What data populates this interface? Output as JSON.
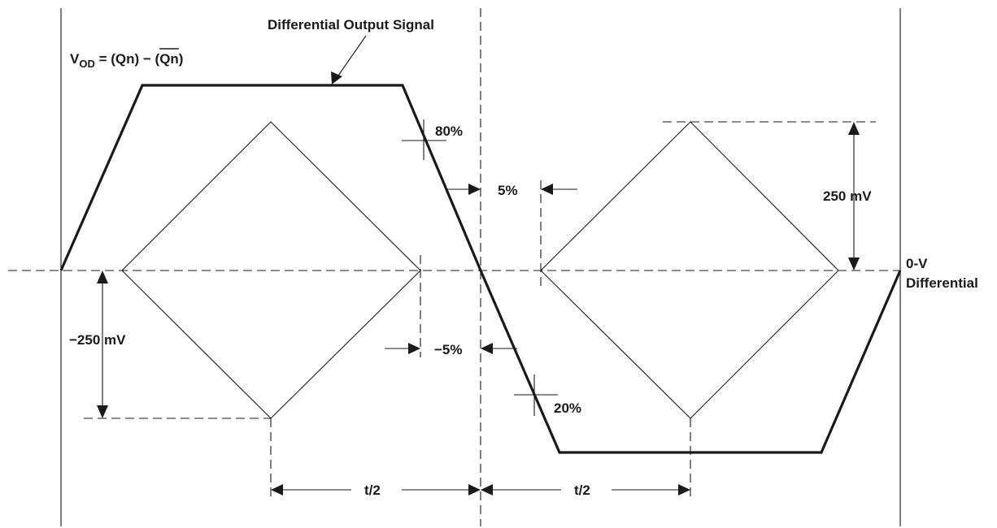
{
  "title": "Differential Output Signal",
  "formula": {
    "v": "V",
    "sub": "OD",
    "lhs": " = (Qn) − (",
    "bar": "Qn",
    "rhs": ")"
  },
  "labels": {
    "pct_80": "80%",
    "pct_5": "5%",
    "pct_neg5": "−5%",
    "pct_20": "20%",
    "mv_pos": "250 mV",
    "mv_neg": "−250 mV",
    "zero_v_line1": "0-V",
    "zero_v_line2": "Differential",
    "half_period_left": "t/2",
    "half_period_right": "t/2"
  }
}
